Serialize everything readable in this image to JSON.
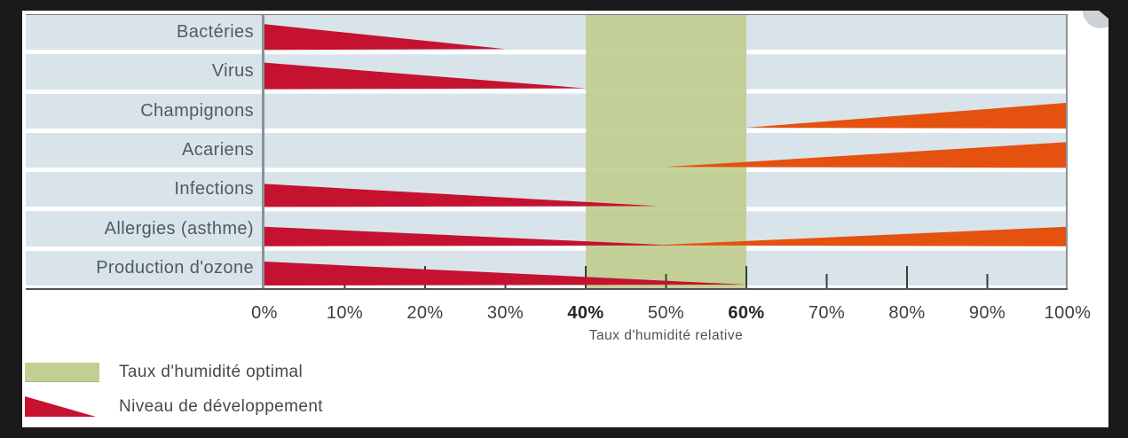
{
  "colors": {
    "frame_dark": "#1a1a1a",
    "content_bg": "#ffffff",
    "row_bg": "#d9e4ea",
    "optimal_band_green": "#bfcd90",
    "wedge_red": "#c51230",
    "wedge_orange": "#e5510f",
    "divider_gray": "#8a9298",
    "tick_dark": "#363f3a",
    "label_text": "#4e5a66",
    "corner_circle_gray": "#cfd2d4"
  },
  "chart_data": {
    "type": "area",
    "title": "",
    "categories": [
      "Bactéries",
      "Virus",
      "Champignons",
      "Acariens",
      "Infections",
      "Allergies (asthme)",
      "Production d'ozone"
    ],
    "series": [
      {
        "category": "Bactéries",
        "wedges": [
          {
            "color": "red",
            "thick_end_pct": 0,
            "tip_pct": 30,
            "thickness_px": 29
          }
        ]
      },
      {
        "category": "Virus",
        "wedges": [
          {
            "color": "red",
            "thick_end_pct": 0,
            "tip_pct": 40,
            "thickness_px": 30
          }
        ]
      },
      {
        "category": "Champignons",
        "wedges": [
          {
            "color": "orange",
            "thick_end_pct": 100,
            "tip_pct": 60,
            "thickness_px": 29
          }
        ]
      },
      {
        "category": "Acariens",
        "wedges": [
          {
            "color": "orange",
            "thick_end_pct": 100,
            "tip_pct": 50,
            "thickness_px": 29
          }
        ]
      },
      {
        "category": "Infections",
        "wedges": [
          {
            "color": "red",
            "thick_end_pct": 0,
            "tip_pct": 49,
            "thickness_px": 26
          }
        ]
      },
      {
        "category": "Allergies (asthme)",
        "wedges": [
          {
            "color": "red",
            "thick_end_pct": 0,
            "tip_pct": 51,
            "thickness_px": 22
          },
          {
            "color": "orange",
            "thick_end_pct": 100,
            "tip_pct": 48,
            "thickness_px": 22
          }
        ]
      },
      {
        "category": "Production d'ozone",
        "wedges": [
          {
            "color": "red",
            "thick_end_pct": 0,
            "tip_pct": 60,
            "thickness_px": 27
          }
        ]
      }
    ],
    "optimal_band_pct": [
      40,
      60
    ],
    "x_ticks": [
      {
        "label": "0%",
        "pct": 0,
        "bold": false
      },
      {
        "label": "10%",
        "pct": 10,
        "bold": false
      },
      {
        "label": "20%",
        "pct": 20,
        "bold": false
      },
      {
        "label": "30%",
        "pct": 30,
        "bold": false
      },
      {
        "label": "40%",
        "pct": 40,
        "bold": true
      },
      {
        "label": "50%",
        "pct": 50,
        "bold": false
      },
      {
        "label": "60%",
        "pct": 60,
        "bold": true
      },
      {
        "label": "70%",
        "pct": 70,
        "bold": false
      },
      {
        "label": "80%",
        "pct": 80,
        "bold": false
      },
      {
        "label": "90%",
        "pct": 90,
        "bold": false
      },
      {
        "label": "100%",
        "pct": 100,
        "bold": false
      }
    ],
    "xlabel": "Taux d'humidité relative",
    "xlim": [
      0,
      100
    ],
    "grid": false,
    "legend_position": "bottom-left"
  },
  "legend": {
    "items": [
      {
        "swatch": "green-rect",
        "label": "Taux d'humidité optimal"
      },
      {
        "swatch": "red-wedge",
        "label": "Niveau de développement"
      }
    ]
  }
}
